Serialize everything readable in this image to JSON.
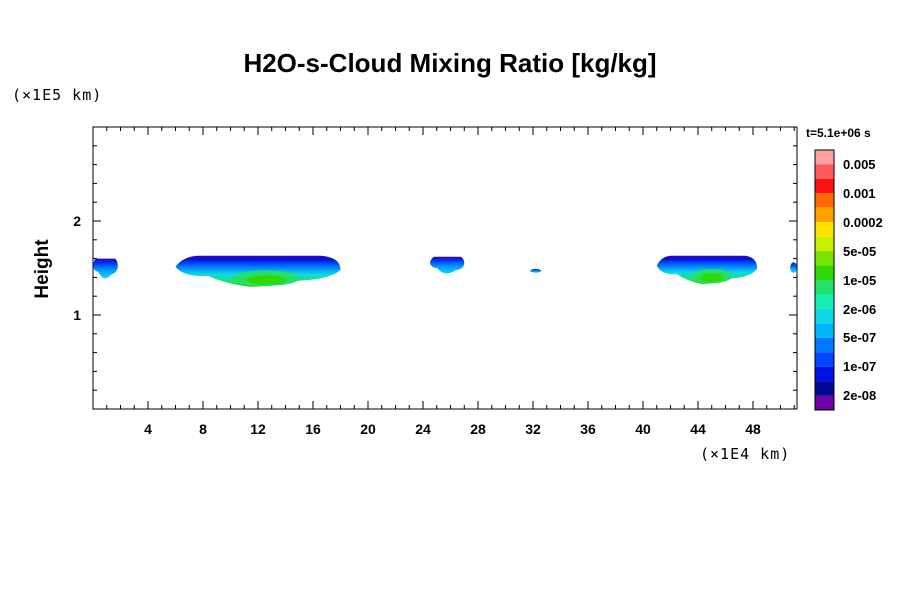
{
  "chart_data": {
    "type": "heatmap",
    "title": "H2O-s-Cloud Mixing Ratio [kg/kg]",
    "ylabel": "Height",
    "xlabel": "",
    "x_scale_note": "(×1E4 km)",
    "y_scale_note": "(×1E5 km)",
    "time_label": "t=5.1e+06 s",
    "xlim": [
      0,
      51.2
    ],
    "ylim": [
      0,
      3.0
    ],
    "x_ticks": [
      4,
      8,
      12,
      16,
      20,
      24,
      28,
      32,
      36,
      40,
      44,
      48
    ],
    "y_ticks": [
      1,
      2
    ],
    "x_minor_step": 1,
    "y_minor_step": 0.2,
    "colorbar": {
      "labels": [
        "0.005",
        "0.001",
        "0.0002",
        "5e-05",
        "1e-05",
        "2e-06",
        "5e-07",
        "1e-07",
        "2e-08"
      ],
      "colors": [
        "#ff9fa0",
        "#ff5a5a",
        "#ff1010",
        "#ff6a00",
        "#ffa200",
        "#ffe200",
        "#c8f000",
        "#78e400",
        "#2ed800",
        "#22e06a",
        "#14f0b4",
        "#10d8e6",
        "#00b4ff",
        "#0078ff",
        "#0046ff",
        "#0010e6",
        "#000896",
        "#6a00a6"
      ]
    },
    "cloud_regions": [
      {
        "x_start": 0,
        "x_end": 1.8,
        "y_bottom": 1.39,
        "y_top": 1.6,
        "max_level": "5e-07"
      },
      {
        "x_start": 6.0,
        "x_end": 18.0,
        "y_bottom": 1.3,
        "y_top": 1.63,
        "max_level": "1e-05"
      },
      {
        "x_start": 24.5,
        "x_end": 27.0,
        "y_bottom": 1.44,
        "y_top": 1.62,
        "max_level": "5e-07"
      },
      {
        "x_start": 31.8,
        "x_end": 32.6,
        "y_bottom": 1.45,
        "y_top": 1.49,
        "max_level": "1e-07"
      },
      {
        "x_start": 41.0,
        "x_end": 48.3,
        "y_bottom": 1.33,
        "y_top": 1.63,
        "max_level": "1e-05"
      },
      {
        "x_start": 50.7,
        "x_end": 51.2,
        "y_bottom": 1.45,
        "y_top": 1.56,
        "max_level": "1e-07"
      }
    ]
  }
}
